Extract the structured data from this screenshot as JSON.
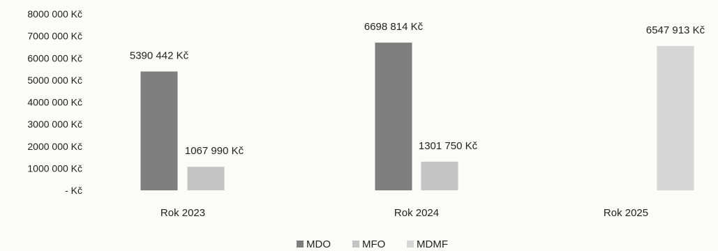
{
  "chart_data": {
    "type": "bar",
    "categories": [
      "Rok 2023",
      "Rok 2024",
      "Rok 2025"
    ],
    "series": [
      {
        "name": "MDO",
        "color": "#7e7e7e",
        "values": [
          5390442,
          6698814,
          null
        ]
      },
      {
        "name": "MFO",
        "color": "#c4c4c4",
        "values": [
          1067990,
          1301750,
          null
        ]
      },
      {
        "name": "MDMF",
        "color": "#d6d6d6",
        "values": [
          null,
          null,
          6547913
        ]
      }
    ],
    "data_labels": [
      [
        "5390 442 Kč",
        "6698 814 Kč",
        ""
      ],
      [
        "1067 990 Kč",
        "1301 750 Kč",
        ""
      ],
      [
        "",
        "",
        "6547 913 Kč"
      ]
    ],
    "y_ticks": [
      {
        "value": 0,
        "label": "-  Kč"
      },
      {
        "value": 1000000,
        "label": "1000 000 Kč"
      },
      {
        "value": 2000000,
        "label": "2000 000 Kč"
      },
      {
        "value": 3000000,
        "label": "3000 000 Kč"
      },
      {
        "value": 4000000,
        "label": "4000 000 Kč"
      },
      {
        "value": 5000000,
        "label": "5000 000 Kč"
      },
      {
        "value": 6000000,
        "label": "6000 000 Kč"
      },
      {
        "value": 7000000,
        "label": "7000 000 Kč"
      },
      {
        "value": 8000000,
        "label": "8000 000 Kč"
      }
    ],
    "ylim": [
      0,
      8000000
    ],
    "title": "",
    "xlabel": "",
    "ylabel": "",
    "grid": false,
    "legend_position": "bottom-center"
  }
}
